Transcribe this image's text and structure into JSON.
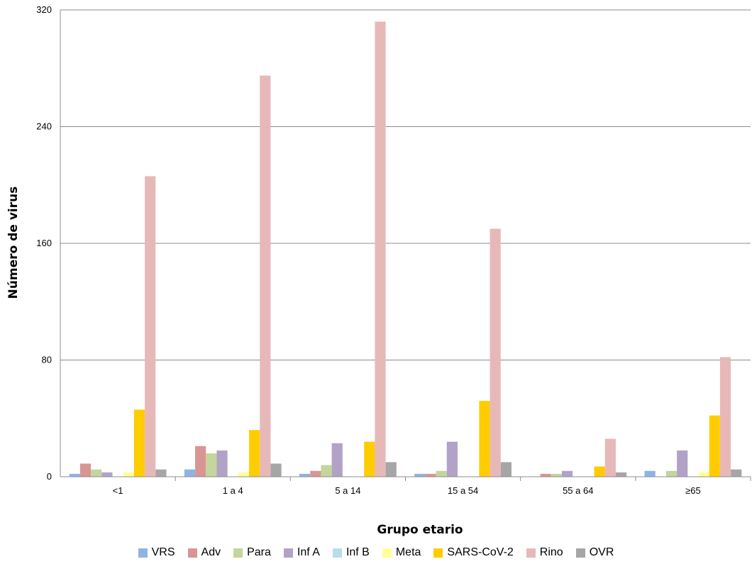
{
  "chart_data": {
    "type": "bar",
    "title": "",
    "xlabel": "Grupo etario",
    "ylabel": "Número de virus",
    "ylim": [
      0,
      320
    ],
    "yticks": [
      0,
      80,
      160,
      240,
      320
    ],
    "grid": true,
    "legend_position": "bottom",
    "categories": [
      "<1",
      "1 a 4",
      "5 a 14",
      "15 a 54",
      "55 a 64",
      "≥65"
    ],
    "series": [
      {
        "name": "VRS",
        "color": "#8EB4E3",
        "values": [
          2,
          5,
          2,
          2,
          0,
          4
        ]
      },
      {
        "name": "Adv",
        "color": "#D99594",
        "values": [
          9,
          21,
          4,
          2,
          2,
          0
        ]
      },
      {
        "name": "Para",
        "color": "#C3D69B",
        "values": [
          5,
          16,
          8,
          4,
          2,
          4
        ]
      },
      {
        "name": "Inf A",
        "color": "#B3A2C7",
        "values": [
          3,
          18,
          23,
          24,
          4,
          18
        ]
      },
      {
        "name": "Inf B",
        "color": "#B7DEE8",
        "values": [
          0,
          0,
          0,
          0,
          0,
          0
        ]
      },
      {
        "name": "Meta",
        "color": "#FFFF99",
        "values": [
          3,
          3,
          0,
          0,
          0,
          3
        ]
      },
      {
        "name": "SARS-CoV-2",
        "color": "#FFCC00",
        "values": [
          46,
          32,
          24,
          52,
          7,
          42
        ]
      },
      {
        "name": "Rino",
        "color": "#E6B9B8",
        "values": [
          206,
          275,
          312,
          170,
          26,
          82
        ]
      },
      {
        "name": "OVR",
        "color": "#A6A6A6",
        "values": [
          5,
          9,
          10,
          10,
          3,
          5
        ]
      }
    ]
  }
}
